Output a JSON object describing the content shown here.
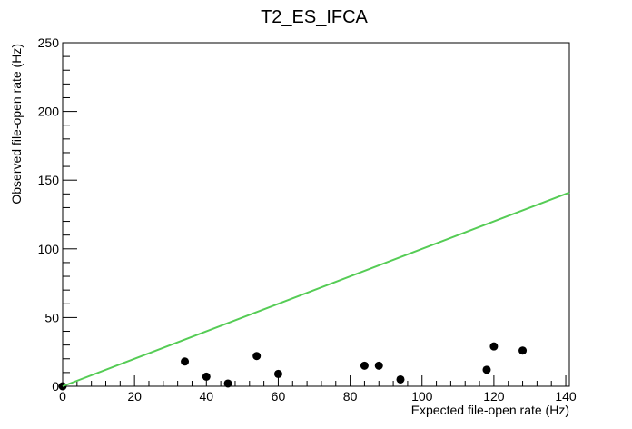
{
  "chart_data": {
    "type": "scatter",
    "title": "T2_ES_IFCA",
    "xlabel": "Expected file-open rate (Hz)",
    "ylabel": "Observed file-open rate (Hz)",
    "xlim": [
      0,
      141
    ],
    "ylim": [
      0,
      250
    ],
    "x_ticks": [
      0,
      20,
      40,
      60,
      80,
      100,
      120,
      140
    ],
    "y_ticks": [
      0,
      50,
      100,
      150,
      200,
      250
    ],
    "grid": false,
    "legend": "none",
    "series": [
      {
        "kind": "points",
        "color": "#000000",
        "points": [
          {
            "x": 0,
            "y": 0
          },
          {
            "x": 34,
            "y": 18
          },
          {
            "x": 40,
            "y": 7
          },
          {
            "x": 46,
            "y": 2
          },
          {
            "x": 54,
            "y": 22
          },
          {
            "x": 60,
            "y": 9
          },
          {
            "x": 84,
            "y": 15
          },
          {
            "x": 88,
            "y": 15
          },
          {
            "x": 94,
            "y": 5
          },
          {
            "x": 118,
            "y": 12
          },
          {
            "x": 120,
            "y": 29
          },
          {
            "x": 128,
            "y": 26
          }
        ]
      },
      {
        "kind": "line",
        "color": "#55cc55",
        "points": [
          {
            "x": 0,
            "y": 0
          },
          {
            "x": 141,
            "y": 141
          }
        ]
      }
    ]
  }
}
